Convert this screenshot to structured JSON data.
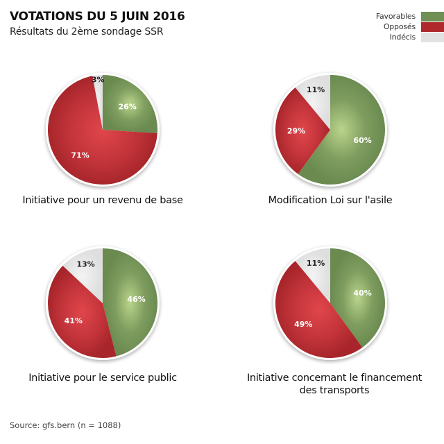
{
  "header": {
    "title": "VOTATIONS DU 5 JUIN 2016",
    "subtitle": "Résultats du 2ème sondage SSR"
  },
  "legend": [
    {
      "label": "Favorables",
      "color": "#6f8f55"
    },
    {
      "label": "Opposés",
      "color": "#b0282c"
    },
    {
      "label": "Indécis",
      "color": "#e2e2e2"
    }
  ],
  "source": "Source: gfs.bern (n = 1088)",
  "chart_data": [
    {
      "type": "pie",
      "title": "Initiative pour un revenu de base",
      "slices": [
        {
          "name": "Favorables",
          "value": 26,
          "label": "26%"
        },
        {
          "name": "Opposés",
          "value": 71,
          "label": "71%"
        },
        {
          "name": "Indécis",
          "value": 3,
          "label": "3%"
        }
      ]
    },
    {
      "type": "pie",
      "title": "Modification Loi sur l'asile",
      "slices": [
        {
          "name": "Favorables",
          "value": 60,
          "label": "60%"
        },
        {
          "name": "Opposés",
          "value": 29,
          "label": "29%"
        },
        {
          "name": "Indécis",
          "value": 11,
          "label": "11%"
        }
      ]
    },
    {
      "type": "pie",
      "title": "Initiative pour le service public",
      "slices": [
        {
          "name": "Favorables",
          "value": 46,
          "label": "46%"
        },
        {
          "name": "Opposés",
          "value": 41,
          "label": "41%"
        },
        {
          "name": "Indécis",
          "value": 13,
          "label": "13%"
        }
      ]
    },
    {
      "type": "pie",
      "title": "Initiative concernant le financement des transports",
      "title_lines": [
        "Initiative concernant le financement",
        "des transports"
      ],
      "slices": [
        {
          "name": "Favorables",
          "value": 40,
          "label": "40%"
        },
        {
          "name": "Opposés",
          "value": 49,
          "label": "49%"
        },
        {
          "name": "Indécis",
          "value": 11,
          "label": "11%"
        }
      ]
    }
  ]
}
